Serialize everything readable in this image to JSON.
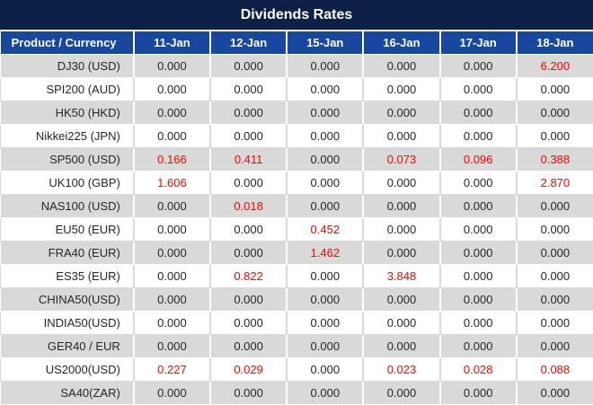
{
  "title_bar": {
    "title": "Dividends Rates"
  },
  "colors": {
    "title_bg": "#0c2145",
    "header_bg": "#17479e",
    "header_text": "#ffffff",
    "stripe_gray": "#d9d9d9",
    "stripe_white": "#ffffff",
    "value_text": "#262626",
    "nonzero_value_red": "#ff0000"
  },
  "table": {
    "product_column_header": "Product / Currency",
    "date_column_headers": [
      "11-Jan",
      "12-Jan",
      "15-Jan",
      "16-Jan",
      "17-Jan",
      "18-Jan"
    ],
    "rows": [
      {
        "product": "DJ30 (USD)",
        "values": [
          "0.000",
          "0.000",
          "0.000",
          "0.000",
          "0.000",
          "6.200"
        ]
      },
      {
        "product": "SPI200 (AUD)",
        "values": [
          "0.000",
          "0.000",
          "0.000",
          "0.000",
          "0.000",
          "0.000"
        ]
      },
      {
        "product": "HK50 (HKD)",
        "values": [
          "0.000",
          "0.000",
          "0.000",
          "0.000",
          "0.000",
          "0.000"
        ]
      },
      {
        "product": "Nikkei225 (JPN)",
        "values": [
          "0.000",
          "0.000",
          "0.000",
          "0.000",
          "0.000",
          "0.000"
        ]
      },
      {
        "product": "SP500 (USD)",
        "values": [
          "0.166",
          "0.411",
          "0.000",
          "0.073",
          "0.096",
          "0.388"
        ]
      },
      {
        "product": "UK100 (GBP)",
        "values": [
          "1.606",
          "0.000",
          "0.000",
          "0.000",
          "0.000",
          "2.870"
        ]
      },
      {
        "product": "NAS100 (USD)",
        "values": [
          "0.000",
          "0.018",
          "0.000",
          "0.000",
          "0.000",
          "0.000"
        ]
      },
      {
        "product": "EU50 (EUR)",
        "values": [
          "0.000",
          "0.000",
          "0.452",
          "0.000",
          "0.000",
          "0.000"
        ]
      },
      {
        "product": "FRA40 (EUR)",
        "values": [
          "0.000",
          "0.000",
          "1.462",
          "0.000",
          "0.000",
          "0.000"
        ]
      },
      {
        "product": "ES35 (EUR)",
        "values": [
          "0.000",
          "0.822",
          "0.000",
          "3.848",
          "0.000",
          "0.000"
        ]
      },
      {
        "product": "CHINA50(USD)",
        "values": [
          "0.000",
          "0.000",
          "0.000",
          "0.000",
          "0.000",
          "0.000"
        ]
      },
      {
        "product": "INDIA50(USD)",
        "values": [
          "0.000",
          "0.000",
          "0.000",
          "0.000",
          "0.000",
          "0.000"
        ]
      },
      {
        "product": "GER40 / EUR",
        "values": [
          "0.000",
          "0.000",
          "0.000",
          "0.000",
          "0.000",
          "0.000"
        ]
      },
      {
        "product": "US2000(USD)",
        "values": [
          "0.227",
          "0.029",
          "0.000",
          "0.023",
          "0.028",
          "0.088"
        ]
      },
      {
        "product": "SA40(ZAR)",
        "values": [
          "0.000",
          "0.000",
          "0.000",
          "0.000",
          "0.000",
          "0.000"
        ]
      }
    ]
  }
}
